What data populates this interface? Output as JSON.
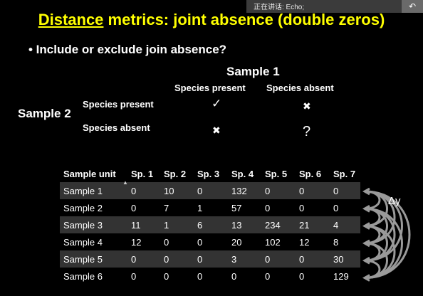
{
  "notification": {
    "text": "正在讲话: Echo;",
    "button_icon": "undo-arrow-icon"
  },
  "slide": {
    "title_underlined": "Distance",
    "title_rest": " metrics: joint absence (double zeros)",
    "bullet": "• Include or exclude join absence?",
    "sample1": "Sample 1",
    "sample2": "Sample 2",
    "col_present": "Species present",
    "col_absent": "Species absent",
    "row_present": "Species present",
    "row_absent": "Species absent",
    "mark_pp": "✓",
    "mark_pa": "✖",
    "mark_ap": "✖",
    "mark_aa": "?",
    "delta_label": "Δy"
  },
  "table": {
    "headers": [
      "Sample unit",
      "Sp. 1",
      "Sp. 2",
      "Sp. 3",
      "Sp. 4",
      "Sp. 5",
      "Sp. 6",
      "Sp. 7"
    ],
    "rows": [
      [
        "Sample 1",
        "0",
        "10",
        "0",
        "132",
        "0",
        "0",
        "0"
      ],
      [
        "Sample 2",
        "0",
        "7",
        "1",
        "57",
        "0",
        "0",
        "0"
      ],
      [
        "Sample 3",
        "11",
        "1",
        "6",
        "13",
        "234",
        "21",
        "4"
      ],
      [
        "Sample 4",
        "12",
        "0",
        "0",
        "20",
        "102",
        "12",
        "8"
      ],
      [
        "Sample 5",
        "0",
        "0",
        "0",
        "3",
        "0",
        "0",
        "30"
      ],
      [
        "Sample 6",
        "0",
        "0",
        "0",
        "0",
        "0",
        "0",
        "129"
      ]
    ]
  },
  "colors": {
    "title": "#ffff00",
    "row_stripe": "#333333",
    "arc": "#9a9a9a"
  }
}
